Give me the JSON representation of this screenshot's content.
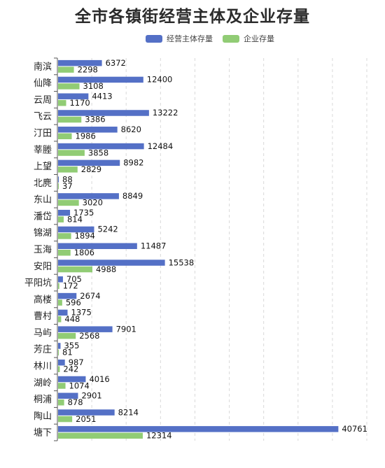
{
  "chart_data": {
    "type": "bar",
    "orientation": "horizontal",
    "title": "全市各镇街经营主体及企业存量",
    "legend_position": "top",
    "grid": true,
    "xlim": [
      0,
      45000
    ],
    "categories": [
      "南滨",
      "仙降",
      "云周",
      "飞云",
      "汀田",
      "莘塍",
      "上望",
      "北麂",
      "东山",
      "潘岱",
      "锦湖",
      "玉海",
      "安阳",
      "平阳坑",
      "高楼",
      "曹村",
      "马屿",
      "芳庄",
      "林川",
      "湖岭",
      "桐浦",
      "陶山",
      "塘下"
    ],
    "series": [
      {
        "name": "经营主体存量",
        "color": "#5470c6",
        "values": [
          6372,
          12400,
          4413,
          13222,
          8620,
          12484,
          8982,
          88,
          8849,
          1735,
          5242,
          11487,
          15538,
          705,
          2674,
          1375,
          7901,
          355,
          987,
          4016,
          2901,
          8214,
          40761
        ]
      },
      {
        "name": "企业存量",
        "color": "#91cc75",
        "values": [
          2298,
          3108,
          1170,
          3386,
          1986,
          3858,
          2829,
          37,
          3020,
          814,
          1894,
          1806,
          4988,
          172,
          596,
          448,
          2568,
          81,
          242,
          1074,
          878,
          2051,
          12314
        ]
      }
    ]
  }
}
